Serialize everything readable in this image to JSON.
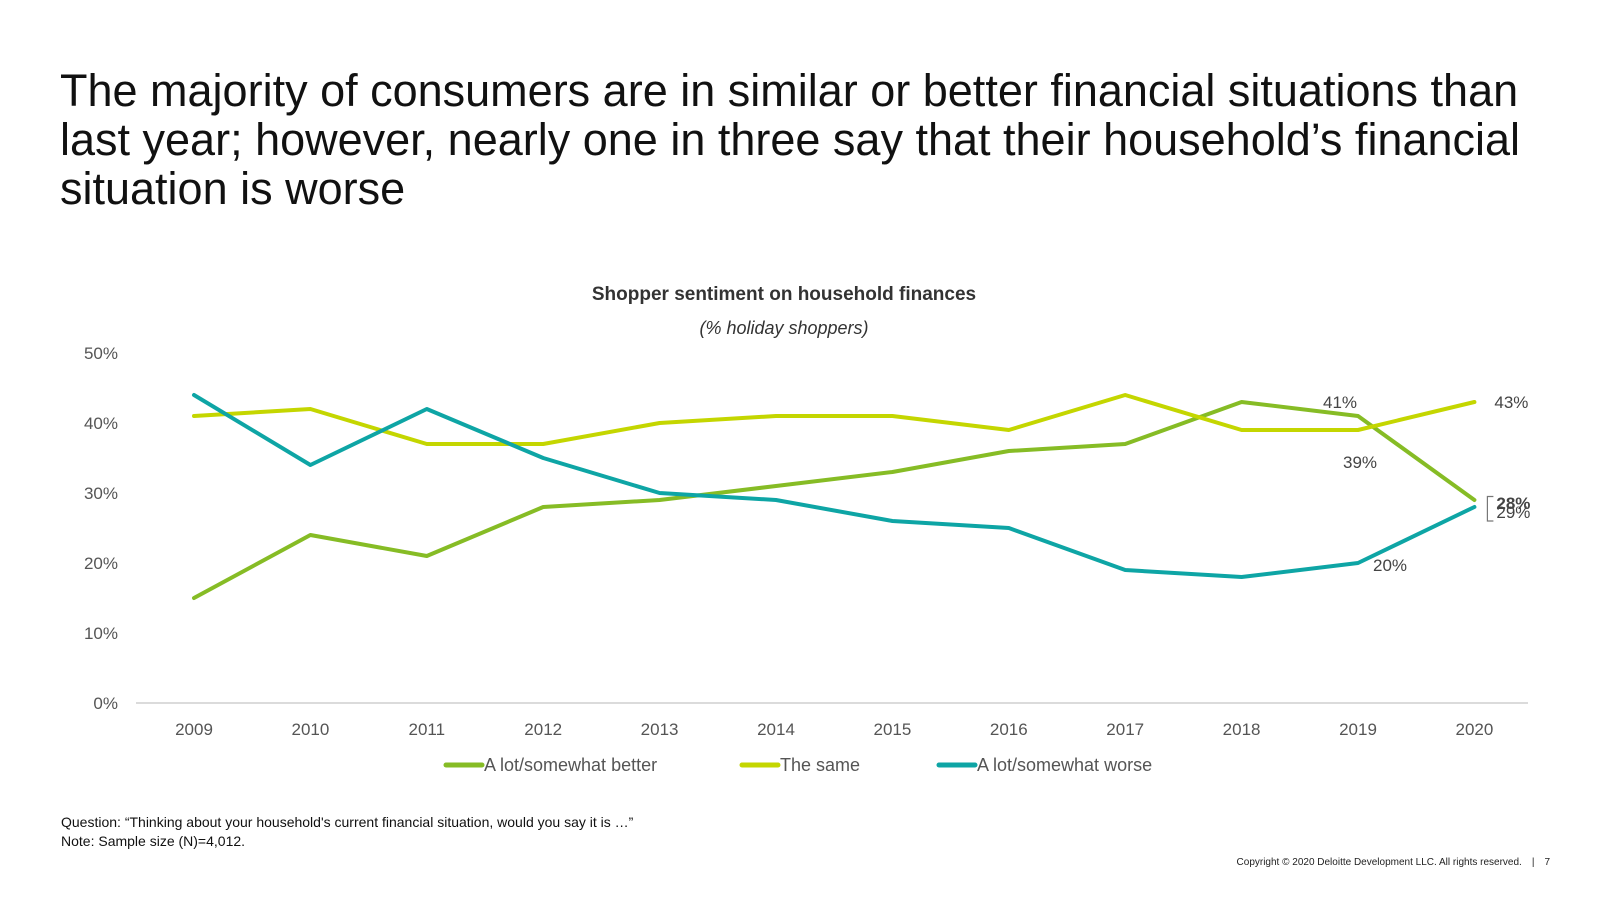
{
  "slide": {
    "title": "The majority of consumers are in similar or better financial situations than last year; however, nearly one in three say that their household’s financial situation is worse",
    "footnote_question": "Question: “Thinking about your household's current financial situation, would you say it is …”",
    "footnote_note": "Note: Sample size (N)=4,012.",
    "copyright": "Copyright © 2020 Deloitte Development LLC. All rights reserved.",
    "separator": "|",
    "page_number": "7"
  },
  "chart_data": {
    "type": "line",
    "title": "Shopper sentiment on household finances",
    "subtitle": "(% holiday shoppers)",
    "xlabel": "",
    "ylabel": "",
    "x": [
      "2009",
      "2010",
      "2011",
      "2012",
      "2013",
      "2014",
      "2015",
      "2016",
      "2017",
      "2018",
      "2019",
      "2020"
    ],
    "ylim": [
      0,
      50
    ],
    "y_ticks": [
      "0%",
      "10%",
      "20%",
      "30%",
      "40%",
      "50%"
    ],
    "grid": false,
    "legend_position": "bottom",
    "series": [
      {
        "name": "A lot/somewhat better",
        "color": "#86bc25",
        "values": [
          15,
          24,
          21,
          28,
          29,
          31,
          33,
          36,
          37,
          43,
          41,
          29
        ]
      },
      {
        "name": "The same",
        "color": "#c4d600",
        "values": [
          41,
          42,
          37,
          37,
          40,
          41,
          41,
          39,
          44,
          39,
          39,
          43
        ]
      },
      {
        "name": "A lot/somewhat worse",
        "color": "#0ea5a5",
        "values": [
          44,
          34,
          42,
          35,
          30,
          29,
          26,
          25,
          19,
          18,
          20,
          28
        ]
      }
    ],
    "annotations": [
      {
        "text": "41%",
        "series": 0,
        "index": 10
      },
      {
        "text": "39%",
        "series": 1,
        "index": 10
      },
      {
        "text": "20%",
        "series": 2,
        "index": 10
      },
      {
        "text": "43%",
        "series": 1,
        "index": 11
      },
      {
        "text": "28%",
        "series": 2,
        "index": 11,
        "bold": true,
        "color": "#86bc25"
      },
      {
        "text": "29%",
        "series": 0,
        "index": 11
      }
    ]
  }
}
